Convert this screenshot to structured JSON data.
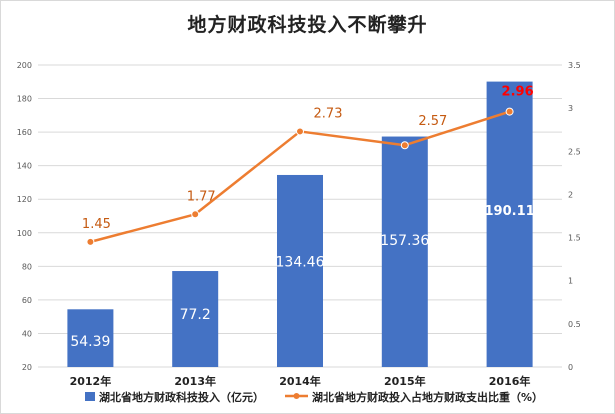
{
  "chart_data": {
    "type": "bar+line",
    "title": "地方财政科技投入不断攀升",
    "categories": [
      "2012年",
      "2013年",
      "2014年",
      "2015年",
      "2016年"
    ],
    "series": [
      {
        "name": "湖北省地方财政科技投入（亿元）",
        "type": "bar",
        "axis": "left",
        "values": [
          54.39,
          77.2,
          134.46,
          157.36,
          190.11
        ],
        "labels": [
          "54.39",
          "77.2",
          "134.46",
          "157.36",
          "190.11"
        ],
        "color": "#4472c4"
      },
      {
        "name": "湖北省地方财政投入占地方财政支出比重（%）",
        "type": "line",
        "axis": "right",
        "values": [
          1.45,
          1.77,
          2.73,
          2.57,
          2.96
        ],
        "labels": [
          "1.45",
          "1.77",
          "2.73",
          "2.57",
          "2.96"
        ],
        "color": "#ed7d31"
      }
    ],
    "y_left": {
      "ylim": [
        20,
        200
      ],
      "ticks": [
        "20",
        "40",
        "60",
        "80",
        "100",
        "120",
        "140",
        "160",
        "180",
        "200"
      ]
    },
    "y_right": {
      "ylim": [
        0,
        3.5
      ],
      "ticks": [
        "0",
        "0.5",
        "1",
        "1.5",
        "2",
        "2.5",
        "3",
        "3.5"
      ]
    },
    "grid": true,
    "legend_position": "bottom",
    "highlight_color": "#ff0000"
  }
}
